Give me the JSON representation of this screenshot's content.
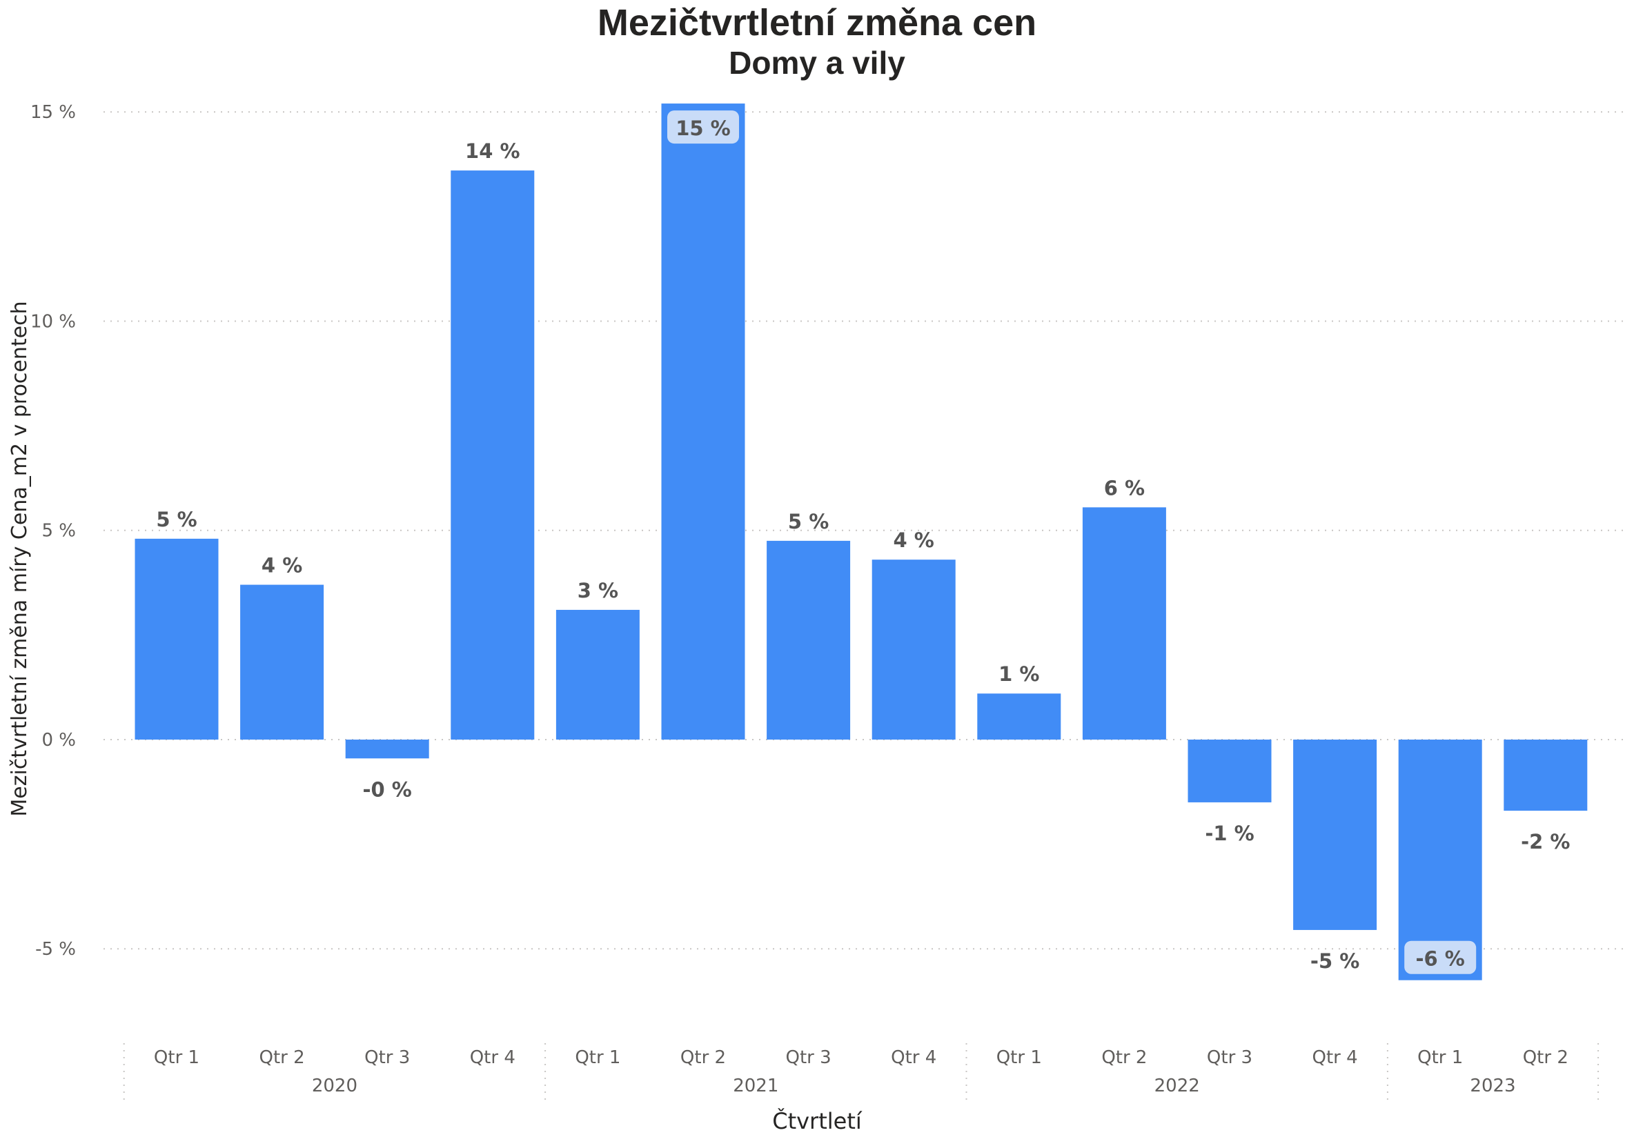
{
  "chart_data": {
    "type": "bar",
    "title": "Mezičtvrtletní změna cen",
    "subtitle": "Domy a vily",
    "xlabel": "Čtvrtletí",
    "ylabel": "Mezičtvrtletní změna míry Cena_m2 v procentech",
    "ylim": [
      -6.2,
      15.3
    ],
    "yticks": [
      -5,
      0,
      5,
      10,
      15
    ],
    "ytick_labels": [
      "-5 %",
      "0 %",
      "5 %",
      "10 %",
      "15 %"
    ],
    "grid": true,
    "bar_color": "#418CF6",
    "highlight_label_bg": "#C9DCF8",
    "label_color": "#555555",
    "axis_text_color": "#605E5C",
    "categories": [
      "Qtr 1",
      "Qtr 2",
      "Qtr 3",
      "Qtr 4",
      "Qtr 1",
      "Qtr 2",
      "Qtr 3",
      "Qtr 4",
      "Qtr 1",
      "Qtr 2",
      "Qtr 3",
      "Qtr 4",
      "Qtr 1",
      "Qtr 2"
    ],
    "years": [
      {
        "label": "2020",
        "count": 4
      },
      {
        "label": "2021",
        "count": 4
      },
      {
        "label": "2022",
        "count": 4
      },
      {
        "label": "2023",
        "count": 2
      }
    ],
    "values": [
      4.8,
      3.7,
      -0.45,
      13.6,
      3.1,
      15.2,
      4.75,
      4.3,
      1.1,
      5.55,
      -1.5,
      -4.55,
      -5.75,
      -1.7
    ],
    "data_labels": [
      "5 %",
      "4 %",
      "-0 %",
      "14 %",
      "3 %",
      "15 %",
      "5 %",
      "4 %",
      "1 %",
      "6 %",
      "-1 %",
      "-5 %",
      "-6 %",
      "-2 %"
    ],
    "highlighted_labels": [
      5,
      12
    ]
  }
}
